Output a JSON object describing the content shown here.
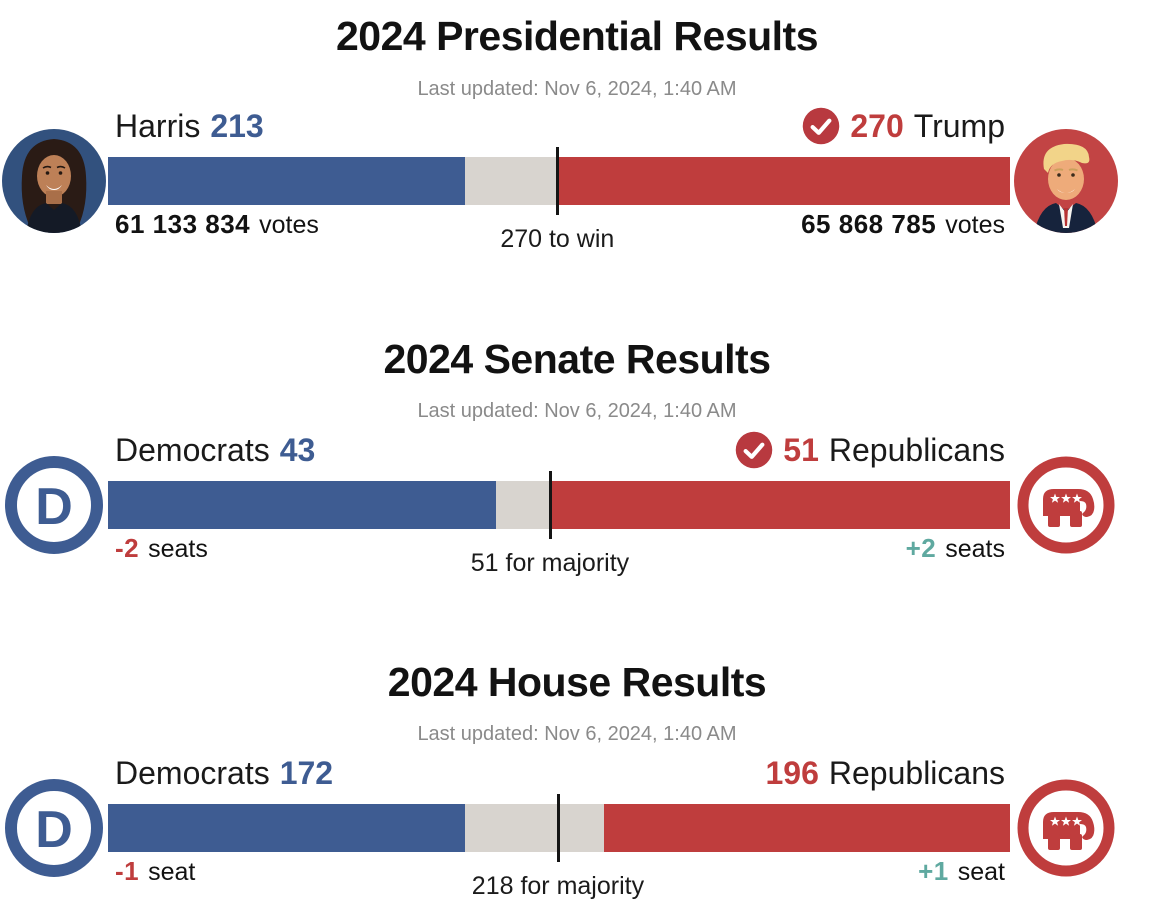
{
  "colors": {
    "democrat": "#3e5c92",
    "republican": "#bf3d3d",
    "undecided": "#d8d4cf",
    "gain": "#5fa9a0",
    "muted": "#8a8a8a",
    "text": "#121212",
    "check": "#b8393f"
  },
  "sections": [
    {
      "title": "2024 Presidential Results",
      "updated": "Last updated: Nov 6, 2024, 1:40 AM",
      "left_name": "Harris",
      "left_value": "213",
      "right_value": "270",
      "right_name": "Trump",
      "right_winner": true,
      "left_sub_value": "61 133 834",
      "left_sub_label": "votes",
      "right_sub_value": "65 868 785",
      "right_sub_label": "votes",
      "threshold_label": "270 to win"
    },
    {
      "title": "2024 Senate Results",
      "updated": "Last updated: Nov 6, 2024, 1:40 AM",
      "left_name": "Democrats",
      "left_value": "43",
      "right_value": "51",
      "right_name": "Republicans",
      "right_winner": true,
      "left_sub_value": "-2",
      "left_sub_label": "seats",
      "right_sub_value": "+2",
      "right_sub_label": "seats",
      "threshold_label": "51 for majority"
    },
    {
      "title": "2024 House Results",
      "updated": "Last updated: Nov 6, 2024, 1:40 AM",
      "left_name": "Democrats",
      "left_value": "172",
      "right_value": "196",
      "right_name": "Republicans",
      "right_winner": false,
      "left_sub_value": "-1",
      "left_sub_label": "seat",
      "right_sub_value": "+1",
      "right_sub_label": "seat",
      "threshold_label": "218 for majority"
    }
  ],
  "chart_data": [
    {
      "type": "bar",
      "title": "2024 Presidential Results",
      "subtitle": "Last updated: Nov 6, 2024, 1:40 AM",
      "categories": [
        "Harris",
        "Uncalled",
        "Trump"
      ],
      "values": [
        213,
        55,
        270
      ],
      "total": 538,
      "threshold": 270,
      "threshold_label": "270 to win",
      "series_colors": [
        "#3e5c92",
        "#d8d4cf",
        "#bf3d3d"
      ],
      "annotations": {
        "harris_votes": "61 133 834 votes",
        "trump_votes": "65 868 785 votes",
        "winner": "Trump"
      }
    },
    {
      "type": "bar",
      "title": "2024 Senate Results",
      "subtitle": "Last updated: Nov 6, 2024, 1:40 AM",
      "categories": [
        "Democrats",
        "Uncalled",
        "Republicans"
      ],
      "values": [
        43,
        6,
        51
      ],
      "total": 100,
      "threshold": 51,
      "threshold_label": "51 for majority",
      "series_colors": [
        "#3e5c92",
        "#d8d4cf",
        "#bf3d3d"
      ],
      "annotations": {
        "dem_change": "-2 seats",
        "rep_change": "+2 seats",
        "winner": "Republicans"
      }
    },
    {
      "type": "bar",
      "title": "2024 House Results",
      "subtitle": "Last updated: Nov 6, 2024, 1:40 AM",
      "categories": [
        "Democrats",
        "Uncalled",
        "Republicans"
      ],
      "values": [
        172,
        67,
        196
      ],
      "total": 435,
      "threshold": 218,
      "threshold_label": "218 for majority",
      "series_colors": [
        "#3e5c92",
        "#d8d4cf",
        "#bf3d3d"
      ],
      "annotations": {
        "dem_change": "-1 seat",
        "rep_change": "+1 seat",
        "winner": null
      }
    }
  ]
}
